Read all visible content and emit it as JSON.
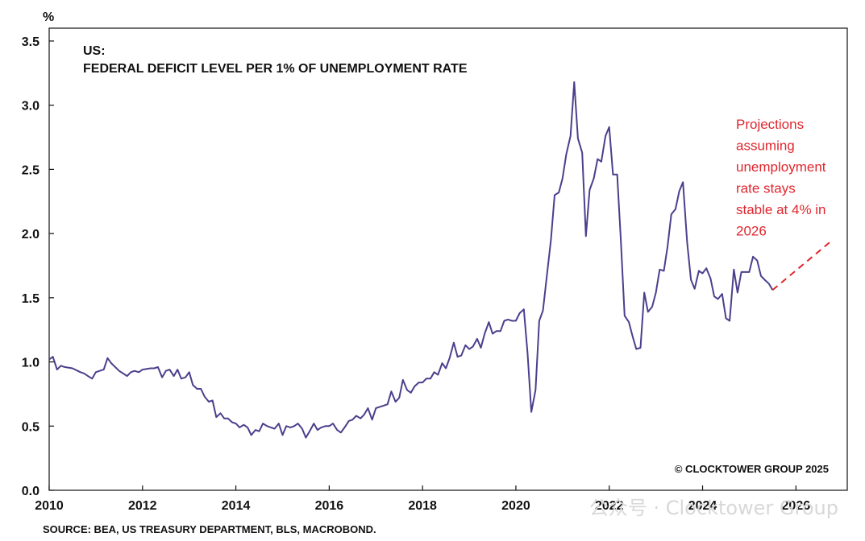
{
  "chart_data": {
    "type": "line",
    "title_line1": "US:",
    "title_line2": "FEDERAL DEFICIT LEVEL PER 1% OF UNEMPLOYMENT RATE",
    "y_unit": "%",
    "xlim": [
      2010,
      2027.1
    ],
    "ylim": [
      0,
      3.6
    ],
    "x_ticks": [
      2010,
      2012,
      2014,
      2016,
      2018,
      2020,
      2022,
      2024,
      2026
    ],
    "x_tick_labels": [
      "2010",
      "2012",
      "2014",
      "2016",
      "2018",
      "2020",
      "2022",
      "2024",
      "2026"
    ],
    "y_ticks": [
      0,
      0.5,
      1.0,
      1.5,
      2.0,
      2.5,
      3.0,
      3.5
    ],
    "y_tick_labels": [
      "0.0",
      "0.5",
      "1.0",
      "1.5",
      "2.0",
      "2.5",
      "3.0",
      "3.5"
    ],
    "grid": false,
    "colors": {
      "series": "#4b3f8c",
      "projection": "#e0262d",
      "axis": "#111111"
    },
    "series": [
      {
        "x": [
          2010.0,
          2010.08,
          2010.17,
          2010.25,
          2010.33,
          2010.5,
          2010.67,
          2010.75,
          2010.83,
          2010.92,
          2011.0,
          2011.08,
          2011.17,
          2011.25,
          2011.33,
          2011.5,
          2011.67,
          2011.75,
          2011.83,
          2011.92,
          2012.0,
          2012.17,
          2012.25,
          2012.33,
          2012.42,
          2012.5,
          2012.58,
          2012.67,
          2012.75,
          2012.83,
          2012.92,
          2013.0,
          2013.08,
          2013.17,
          2013.25,
          2013.33,
          2013.42,
          2013.5,
          2013.58,
          2013.67,
          2013.75,
          2013.83,
          2013.92,
          2014.0,
          2014.08,
          2014.17,
          2014.25,
          2014.33,
          2014.42,
          2014.5,
          2014.58,
          2014.67,
          2014.75,
          2014.83,
          2014.92,
          2015.0,
          2015.08,
          2015.17,
          2015.25,
          2015.33,
          2015.42,
          2015.5,
          2015.58,
          2015.67,
          2015.75,
          2015.83,
          2015.92,
          2016.0,
          2016.08,
          2016.17,
          2016.25,
          2016.33,
          2016.42,
          2016.5,
          2016.58,
          2016.67,
          2016.75,
          2016.83,
          2016.92,
          2017.0,
          2017.08,
          2017.17,
          2017.25,
          2017.33,
          2017.42,
          2017.5,
          2017.58,
          2017.67,
          2017.75,
          2017.83,
          2017.92,
          2018.0,
          2018.08,
          2018.17,
          2018.25,
          2018.33,
          2018.42,
          2018.5,
          2018.58,
          2018.67,
          2018.75,
          2018.83,
          2018.92,
          2019.0,
          2019.08,
          2019.17,
          2019.25,
          2019.33,
          2019.42,
          2019.5,
          2019.58,
          2019.67,
          2019.75,
          2019.83,
          2019.92,
          2020.0,
          2020.08,
          2020.17,
          2020.25,
          2020.33,
          2020.42,
          2020.5,
          2020.58,
          2020.67,
          2020.75,
          2020.83,
          2020.92,
          2021.0,
          2021.08,
          2021.17,
          2021.25,
          2021.33,
          2021.42,
          2021.5,
          2021.58,
          2021.67,
          2021.75,
          2021.83,
          2021.92,
          2022.0,
          2022.08,
          2022.17,
          2022.25,
          2022.33,
          2022.42,
          2022.5,
          2022.58,
          2022.67,
          2022.75,
          2022.83,
          2022.92,
          2023.0,
          2023.08,
          2023.17,
          2023.25,
          2023.33,
          2023.42,
          2023.5,
          2023.58,
          2023.67,
          2023.75,
          2023.83,
          2023.92,
          2024.0,
          2024.08,
          2024.17,
          2024.25,
          2024.33,
          2024.42,
          2024.5,
          2024.58,
          2024.67,
          2024.75,
          2024.83,
          2024.92,
          2025.0,
          2025.08,
          2025.17,
          2025.25,
          2025.33,
          2025.42,
          2025.5
        ],
        "y": [
          1.02,
          1.04,
          0.94,
          0.97,
          0.96,
          0.95,
          0.92,
          0.91,
          0.89,
          0.87,
          0.92,
          0.93,
          0.94,
          1.03,
          0.99,
          0.93,
          0.89,
          0.92,
          0.93,
          0.92,
          0.94,
          0.95,
          0.95,
          0.96,
          0.88,
          0.93,
          0.94,
          0.89,
          0.94,
          0.87,
          0.88,
          0.92,
          0.82,
          0.79,
          0.79,
          0.73,
          0.69,
          0.7,
          0.57,
          0.6,
          0.56,
          0.56,
          0.53,
          0.52,
          0.49,
          0.51,
          0.49,
          0.43,
          0.47,
          0.46,
          0.52,
          0.5,
          0.49,
          0.48,
          0.52,
          0.43,
          0.5,
          0.49,
          0.5,
          0.52,
          0.48,
          0.41,
          0.46,
          0.52,
          0.47,
          0.49,
          0.5,
          0.5,
          0.52,
          0.47,
          0.45,
          0.49,
          0.54,
          0.55,
          0.58,
          0.56,
          0.59,
          0.64,
          0.55,
          0.64,
          0.65,
          0.66,
          0.67,
          0.77,
          0.69,
          0.72,
          0.86,
          0.78,
          0.76,
          0.81,
          0.84,
          0.84,
          0.87,
          0.87,
          0.92,
          0.9,
          0.99,
          0.95,
          1.03,
          1.15,
          1.04,
          1.05,
          1.13,
          1.1,
          1.12,
          1.18,
          1.11,
          1.22,
          1.31,
          1.22,
          1.24,
          1.24,
          1.32,
          1.33,
          1.32,
          1.32,
          1.38,
          1.41,
          1.07,
          0.61,
          0.78,
          1.32,
          1.4,
          1.69,
          1.95,
          2.3,
          2.32,
          2.43,
          2.62,
          2.76,
          3.18,
          2.74,
          2.63,
          1.98,
          2.34,
          2.43,
          2.58,
          2.56,
          2.76,
          2.83,
          2.46,
          2.46,
          1.94,
          1.36,
          1.31,
          1.2,
          1.1,
          1.11,
          1.54,
          1.39,
          1.43,
          1.54,
          1.72,
          1.71,
          1.9,
          2.15,
          2.19,
          2.33,
          2.4,
          1.93,
          1.64,
          1.57,
          1.71,
          1.69,
          1.73,
          1.65,
          1.51,
          1.49,
          1.53,
          1.34,
          1.32,
          1.72,
          1.54,
          1.7,
          1.7,
          1.7,
          1.82,
          1.79,
          1.67,
          1.64,
          1.61,
          1.56
        ]
      }
    ],
    "projection": {
      "x": [
        2025.5,
        2026.75
      ],
      "y": [
        1.56,
        1.94
      ]
    },
    "annotation_lines": [
      "Projections",
      "assuming",
      "unemployment",
      "rate stays",
      "stable at 4% in",
      "2026"
    ],
    "copyright": "© CLOCKTOWER GROUP 2025",
    "source": "SOURCE: BEA, US TREASURY DEPARTMENT, BLS, MACROBOND.",
    "watermark": "公众号 · Clocktower Group"
  }
}
